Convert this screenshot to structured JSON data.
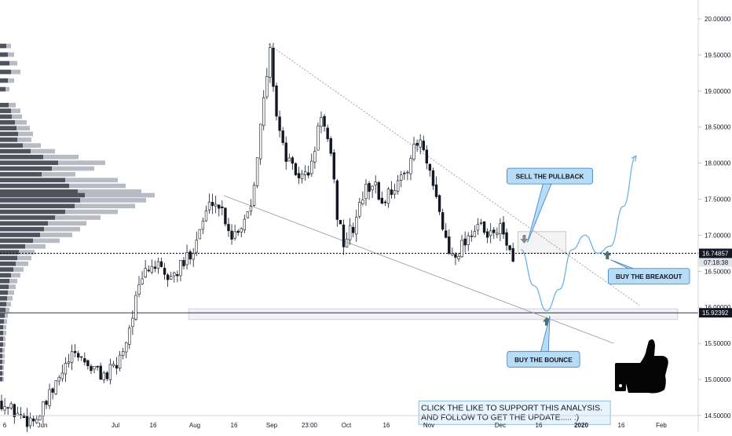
{
  "chart_data": {
    "type": "candlestick",
    "title": "",
    "xlabel": "",
    "ylabel": "",
    "ylim": [
      13.8,
      20.15
    ],
    "grid": false,
    "x_ticks": [
      {
        "label": "6",
        "bold": false
      },
      {
        "label": "Jun",
        "bold": false
      },
      {
        "label": "Jul",
        "bold": false
      },
      {
        "label": "16",
        "bold": false
      },
      {
        "label": "Aug",
        "bold": false
      },
      {
        "label": "16",
        "bold": false
      },
      {
        "label": "Sep",
        "bold": false
      },
      {
        "label": "23:00",
        "bold": false
      },
      {
        "label": "Oct",
        "bold": false
      },
      {
        "label": "16",
        "bold": false
      },
      {
        "label": "Nov",
        "bold": false
      },
      {
        "label": "Dec",
        "bold": false
      },
      {
        "label": "16",
        "bold": false
      },
      {
        "label": "2020",
        "bold": true
      },
      {
        "label": "16",
        "bold": false
      },
      {
        "label": "Feb",
        "bold": false
      }
    ],
    "y_ticks": [
      {
        "value": 14.0,
        "label": "14.00000"
      },
      {
        "value": 14.5,
        "label": "14.50000"
      },
      {
        "value": 15.0,
        "label": "15.00000"
      },
      {
        "value": 15.5,
        "label": "15.50000"
      },
      {
        "value": 16.0,
        "label": "16.00000"
      },
      {
        "value": 16.5,
        "label": "16.50000"
      },
      {
        "value": 17.0,
        "label": "17.00000"
      },
      {
        "value": 17.5,
        "label": "17.50000"
      },
      {
        "value": 18.0,
        "label": "18.00000"
      },
      {
        "value": 18.5,
        "label": "18.50000"
      },
      {
        "value": 19.0,
        "label": "19.00000"
      },
      {
        "value": 19.5,
        "label": "19.50000"
      },
      {
        "value": 20.0,
        "label": "20.00000"
      }
    ],
    "price_badges": [
      {
        "value": 16.74857,
        "label": "16.74857",
        "sub": "07:18:38",
        "bg": "#131722",
        "fg": "#ffffff",
        "sub_bg": "#e1e3ea",
        "sub_fg": "#131722"
      },
      {
        "value": 15.92392,
        "label": "15.92392",
        "bg": "#131722",
        "fg": "#ffffff"
      }
    ],
    "horizontal_lines": [
      {
        "value": 16.74857,
        "style": "dotted",
        "color": "#131722"
      },
      {
        "value": 15.92392,
        "style": "solid",
        "color": "#131722"
      }
    ],
    "price_path": [
      [
        0,
        14.7
      ],
      [
        2,
        14.6
      ],
      [
        4,
        14.55
      ],
      [
        6,
        14.5
      ],
      [
        8,
        14.45
      ],
      [
        10,
        14.45
      ],
      [
        12,
        14.5
      ],
      [
        15,
        14.75
      ],
      [
        18,
        15.0
      ],
      [
        21,
        15.25
      ],
      [
        24,
        15.35
      ],
      [
        27,
        15.2
      ],
      [
        30,
        15.1
      ],
      [
        33,
        15.05
      ],
      [
        36,
        15.2
      ],
      [
        39,
        15.55
      ],
      [
        42,
        16.1
      ],
      [
        45,
        16.5
      ],
      [
        48,
        16.6
      ],
      [
        51,
        16.4
      ],
      [
        54,
        16.45
      ],
      [
        57,
        16.6
      ],
      [
        60,
        16.85
      ],
      [
        63,
        17.2
      ],
      [
        66,
        17.5
      ],
      [
        69,
        17.35
      ],
      [
        72,
        17.0
      ],
      [
        75,
        17.15
      ],
      [
        78,
        17.45
      ],
      [
        81,
        18.5
      ],
      [
        84,
        19.55
      ],
      [
        86,
        18.7
      ],
      [
        88,
        18.2
      ],
      [
        91,
        17.9
      ],
      [
        94,
        17.8
      ],
      [
        97,
        17.95
      ],
      [
        100,
        18.7
      ],
      [
        103,
        18.05
      ],
      [
        105,
        17.3
      ],
      [
        107,
        16.9
      ],
      [
        110,
        17.1
      ],
      [
        113,
        17.55
      ],
      [
        116,
        17.75
      ],
      [
        119,
        17.45
      ],
      [
        122,
        17.65
      ],
      [
        125,
        17.75
      ],
      [
        128,
        18.1
      ],
      [
        131,
        18.3
      ],
      [
        134,
        17.8
      ],
      [
        137,
        17.3
      ],
      [
        140,
        16.75
      ],
      [
        143,
        16.8
      ],
      [
        146,
        17.0
      ],
      [
        149,
        17.15
      ],
      [
        152,
        16.95
      ],
      [
        155,
        17.1
      ],
      [
        158,
        16.95
      ],
      [
        160,
        16.55
      ]
    ],
    "last_candle_index": 160,
    "projection_path": [
      [
        163,
        16.8
      ],
      [
        167,
        16.3
      ],
      [
        171,
        15.95
      ],
      [
        175,
        16.25
      ],
      [
        179,
        16.8
      ],
      [
        183,
        17.0
      ],
      [
        187,
        16.75
      ],
      [
        191,
        16.85
      ],
      [
        195,
        17.4
      ],
      [
        199,
        18.1
      ]
    ],
    "trendlines": [
      {
        "from": [
          84,
          19.65
        ],
        "to": [
          200,
          16.03
        ],
        "style": "dotted",
        "color": "#8a8e99"
      },
      {
        "from": [
          70,
          17.55
        ],
        "to": [
          192,
          15.5
        ],
        "style": "solid",
        "color": "#9598a1"
      }
    ],
    "zones": [
      {
        "x_from": 59,
        "x_to": 212,
        "y_from": 15.83,
        "y_to": 15.98,
        "fill": "#f1f2f5",
        "stroke": "#c9cbd2"
      },
      {
        "x_from": 162,
        "x_to": 177,
        "y_from": 16.75,
        "y_to": 17.05,
        "fill": "#f3f3f3",
        "stroke": "#bdbdbd"
      }
    ],
    "volume_profile": {
      "max_units": 197,
      "rows": [
        [
          19.62,
          14
        ],
        [
          19.5,
          18
        ],
        [
          19.38,
          22
        ],
        [
          19.26,
          26
        ],
        [
          19.14,
          18
        ],
        [
          19.02,
          12
        ],
        [
          18.8,
          20
        ],
        [
          18.72,
          26
        ],
        [
          18.64,
          28
        ],
        [
          18.56,
          34
        ],
        [
          18.48,
          38
        ],
        [
          18.4,
          42
        ],
        [
          18.32,
          40
        ],
        [
          18.24,
          52
        ],
        [
          18.16,
          70
        ],
        [
          18.08,
          100
        ],
        [
          18.0,
          134
        ],
        [
          17.92,
          120
        ],
        [
          17.84,
          96
        ],
        [
          17.76,
          150
        ],
        [
          17.68,
          160
        ],
        [
          17.6,
          180
        ],
        [
          17.55,
          197
        ],
        [
          17.48,
          186
        ],
        [
          17.4,
          172
        ],
        [
          17.32,
          150
        ],
        [
          17.24,
          128
        ],
        [
          17.16,
          110
        ],
        [
          17.08,
          102
        ],
        [
          17.0,
          92
        ],
        [
          16.92,
          76
        ],
        [
          16.84,
          58
        ],
        [
          16.76,
          44
        ],
        [
          16.68,
          40
        ],
        [
          16.6,
          36
        ],
        [
          16.52,
          30
        ],
        [
          16.44,
          26
        ],
        [
          16.36,
          22
        ],
        [
          16.28,
          20
        ],
        [
          16.2,
          18
        ],
        [
          16.12,
          16
        ],
        [
          16.04,
          14
        ],
        [
          15.96,
          12
        ],
        [
          15.88,
          10
        ],
        [
          15.8,
          9
        ],
        [
          15.72,
          8
        ],
        [
          15.64,
          8
        ],
        [
          15.56,
          7
        ],
        [
          15.48,
          7
        ],
        [
          15.4,
          6
        ],
        [
          15.32,
          6
        ],
        [
          15.24,
          6
        ],
        [
          15.16,
          5
        ],
        [
          15.08,
          5
        ],
        [
          15.0,
          5
        ]
      ]
    },
    "markers": [
      {
        "id": "sell-pullback-arrow",
        "at": [
          164,
          16.95
        ],
        "dir": "down",
        "color": "#868993"
      },
      {
        "id": "buy-bounce-arrow",
        "at": [
          171,
          15.8
        ],
        "dir": "up",
        "color": "#4c7171"
      },
      {
        "id": "buy-breakout-arrow",
        "at": [
          190,
          16.72
        ],
        "dir": "up",
        "color": "#4c7171"
      }
    ],
    "callouts": [
      {
        "id": "sell-pullback",
        "label": "SELL THE PULLBACK",
        "at": [
          172,
          17.82
        ],
        "tail_to": [
          165,
          16.9
        ]
      },
      {
        "id": "buy-bounce",
        "label": "BUY THE BOUNCE",
        "at": [
          170,
          15.28
        ],
        "tail_to": [
          172,
          15.88
        ]
      },
      {
        "id": "buy-breakout",
        "label": "BUY THE BREAKOUT",
        "at": [
          203,
          16.43
        ],
        "tail_to": [
          191,
          16.66
        ]
      }
    ],
    "note": {
      "lines": [
        "CLICK THE LIKE TO SUPPORT THIS ANALYSIS.",
        "AND FOLLOW TO GET THE UPDATE..... :)"
      ],
      "at": [
        131,
        14.55
      ]
    }
  },
  "colors": {
    "background": "#ffffff",
    "candle": "#131722",
    "callout_fill": "#b6dcf7",
    "callout_stroke": "#3a7ec4",
    "projection": "#6db3e6",
    "axis_text": "#131722",
    "profile_dark": "#50535e",
    "profile_light": "#b9bbc4"
  },
  "icons": {
    "thumbs_up": "thumbs-up-icon"
  }
}
